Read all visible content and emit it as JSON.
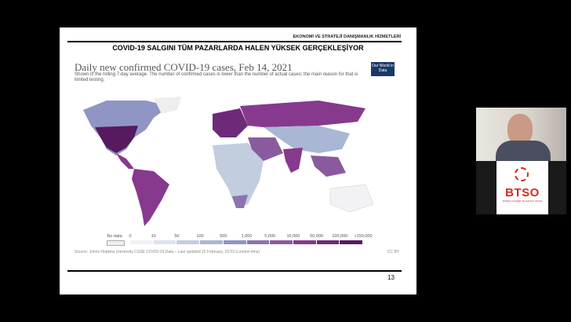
{
  "slide": {
    "kicker": "EKONOMİ VE STRATEJİ DANIŞMANLIK HİZMETLERİ",
    "title": "COVID-19 SALGINI TÜM PAZARLARDA HALEN YÜKSEK GERÇEKLEŞİYOR",
    "page_number": "13"
  },
  "map": {
    "title": "Daily new confirmed COVID-19 cases, Feb 14, 2021",
    "subtitle": "Shown is the rolling 7-day average. The number of confirmed cases is lower than the number of actual cases; the main reason for that is limited testing.",
    "badge": "Our World in Data",
    "legend": {
      "no_data_label": "No data",
      "labels": [
        "0",
        "10",
        "50",
        "100",
        "500",
        "1,000",
        "5,000",
        "10,000",
        "50,000",
        "100,000",
        ">150,000"
      ],
      "colors": [
        "#f2f2f5",
        "#dde3ec",
        "#c3cde0",
        "#a9b6d4",
        "#8f95c4",
        "#8c74b0",
        "#8a5a9f",
        "#87398d",
        "#6e2a7a",
        "#571a5f"
      ],
      "no_data_color": "#eeeeee"
    },
    "source": "Source: Johns Hopkins University CSSE COVID-19 Data – Last updated 15 February, 10:03 (London time)",
    "license": "CC BY"
  },
  "video": {
    "logo_text": "BTSO",
    "logo_subtext": "BURSA TİCARET VE SANAYİ ODASI",
    "logo_color": "#d42a22"
  }
}
